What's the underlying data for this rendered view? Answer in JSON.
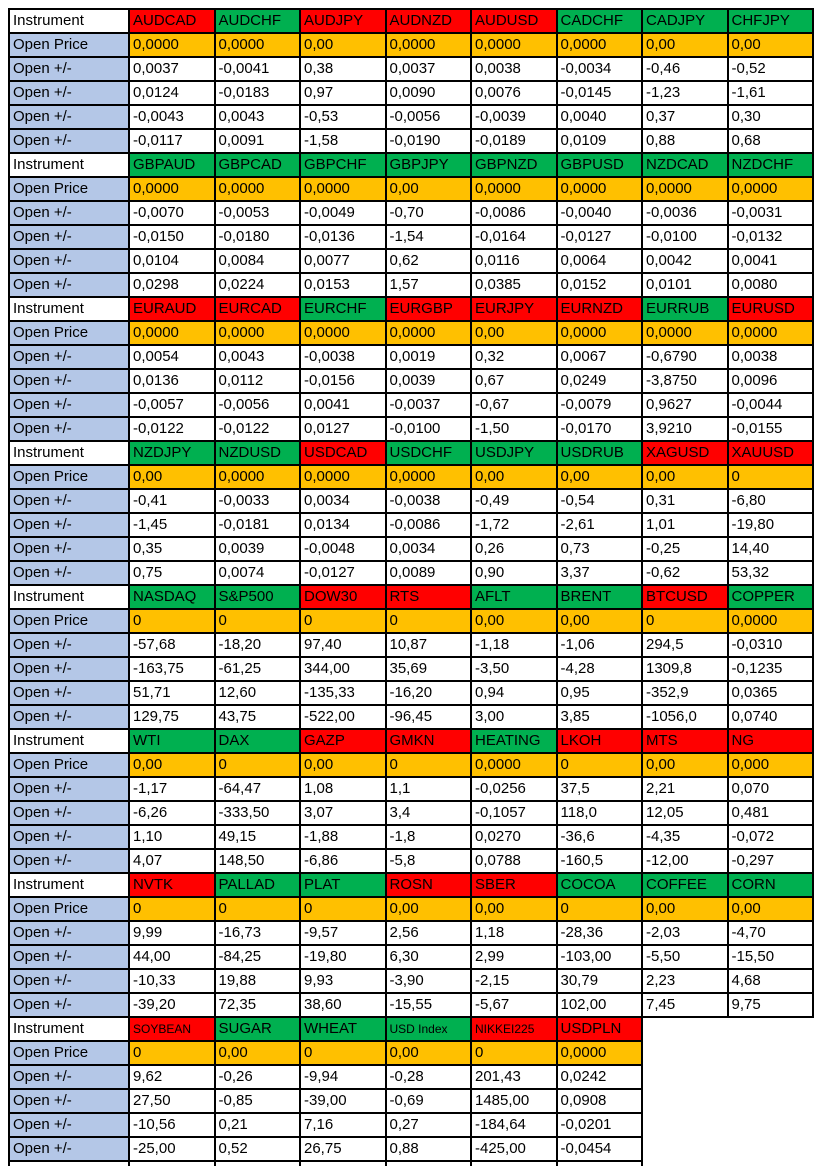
{
  "labels": {
    "instrument": "Instrument",
    "open_price": "Open Price",
    "open_change": "Open +/-"
  },
  "colors": {
    "header_red": "#FF0000",
    "header_green": "#00B050",
    "price_orange": "#FFC000",
    "label_blue": "#B4C7E7",
    "grid_border": "#000000"
  },
  "blocks": [
    {
      "instruments": [
        {
          "name": "AUDCAD",
          "color": "red"
        },
        {
          "name": "AUDCHF",
          "color": "green"
        },
        {
          "name": "AUDJPY",
          "color": "red"
        },
        {
          "name": "AUDNZD",
          "color": "red"
        },
        {
          "name": "AUDUSD",
          "color": "red"
        },
        {
          "name": "CADCHF",
          "color": "green"
        },
        {
          "name": "CADJPY",
          "color": "green"
        },
        {
          "name": "CHFJPY",
          "color": "green"
        }
      ],
      "open_price": [
        "0,0000",
        "0,0000",
        "0,00",
        "0,0000",
        "0,0000",
        "0,0000",
        "0,00",
        "0,00"
      ],
      "rows": [
        [
          "0,0037",
          "-0,0041",
          "0,38",
          "0,0037",
          "0,0038",
          "-0,0034",
          "-0,46",
          "-0,52"
        ],
        [
          "0,0124",
          "-0,0183",
          "0,97",
          "0,0090",
          "0,0076",
          "-0,0145",
          "-1,23",
          "-1,61"
        ],
        [
          "-0,0043",
          "0,0043",
          "-0,53",
          "-0,0056",
          "-0,0039",
          "0,0040",
          "0,37",
          "0,30"
        ],
        [
          "-0,0117",
          "0,0091",
          "-1,58",
          "-0,0190",
          "-0,0189",
          "0,0109",
          "0,88",
          "0,68"
        ]
      ]
    },
    {
      "instruments": [
        {
          "name": "GBPAUD",
          "color": "green"
        },
        {
          "name": "GBPCAD",
          "color": "green"
        },
        {
          "name": "GBPCHF",
          "color": "green"
        },
        {
          "name": "GBPJPY",
          "color": "green"
        },
        {
          "name": "GBPNZD",
          "color": "green"
        },
        {
          "name": "GBPUSD",
          "color": "green"
        },
        {
          "name": "NZDCAD",
          "color": "green"
        },
        {
          "name": "NZDCHF",
          "color": "green"
        }
      ],
      "open_price": [
        "0,0000",
        "0,0000",
        "0,0000",
        "0,00",
        "0,0000",
        "0,0000",
        "0,0000",
        "0,0000"
      ],
      "rows": [
        [
          "-0,0070",
          "-0,0053",
          "-0,0049",
          "-0,70",
          "-0,0086",
          "-0,0040",
          "-0,0036",
          "-0,0031"
        ],
        [
          "-0,0150",
          "-0,0180",
          "-0,0136",
          "-1,54",
          "-0,0164",
          "-0,0127",
          "-0,0100",
          "-0,0132"
        ],
        [
          "0,0104",
          "0,0084",
          "0,0077",
          "0,62",
          "0,0116",
          "0,0064",
          "0,0042",
          "0,0041"
        ],
        [
          "0,0298",
          "0,0224",
          "0,0153",
          "1,57",
          "0,0385",
          "0,0152",
          "0,0101",
          "0,0080"
        ]
      ]
    },
    {
      "instruments": [
        {
          "name": "EURAUD",
          "color": "red"
        },
        {
          "name": "EURCAD",
          "color": "red"
        },
        {
          "name": "EURCHF",
          "color": "green"
        },
        {
          "name": "EURGBP",
          "color": "red"
        },
        {
          "name": "EURJPY",
          "color": "red"
        },
        {
          "name": "EURNZD",
          "color": "red"
        },
        {
          "name": "EURRUB",
          "color": "green"
        },
        {
          "name": "EURUSD",
          "color": "red"
        }
      ],
      "open_price": [
        "0,0000",
        "0,0000",
        "0,0000",
        "0,0000",
        "0,00",
        "0,0000",
        "0,0000",
        "0,0000"
      ],
      "rows": [
        [
          "0,0054",
          "0,0043",
          "-0,0038",
          "0,0019",
          "0,32",
          "0,0067",
          "-0,6790",
          "0,0038"
        ],
        [
          "0,0136",
          "0,0112",
          "-0,0156",
          "0,0039",
          "0,67",
          "0,0249",
          "-3,8750",
          "0,0096"
        ],
        [
          "-0,0057",
          "-0,0056",
          "0,0041",
          "-0,0037",
          "-0,67",
          "-0,0079",
          "0,9627",
          "-0,0044"
        ],
        [
          "-0,0122",
          "-0,0122",
          "0,0127",
          "-0,0100",
          "-1,50",
          "-0,0170",
          "3,9210",
          "-0,0155"
        ]
      ]
    },
    {
      "instruments": [
        {
          "name": "NZDJPY",
          "color": "green"
        },
        {
          "name": "NZDUSD",
          "color": "green"
        },
        {
          "name": "USDCAD",
          "color": "red"
        },
        {
          "name": "USDCHF",
          "color": "green"
        },
        {
          "name": "USDJPY",
          "color": "green"
        },
        {
          "name": "USDRUB",
          "color": "green"
        },
        {
          "name": "XAGUSD",
          "color": "red"
        },
        {
          "name": "XAUUSD",
          "color": "red"
        }
      ],
      "open_price": [
        "0,00",
        "0,0000",
        "0,0000",
        "0,0000",
        "0,00",
        "0,00",
        "0,00",
        "0"
      ],
      "rows": [
        [
          "-0,41",
          "-0,0033",
          "0,0034",
          "-0,0038",
          "-0,49",
          "-0,54",
          "0,31",
          "-6,80"
        ],
        [
          "-1,45",
          "-0,0181",
          "0,0134",
          "-0,0086",
          "-1,72",
          "-2,61",
          "1,01",
          "-19,80"
        ],
        [
          "0,35",
          "0,0039",
          "-0,0048",
          "0,0034",
          "0,26",
          "0,73",
          "-0,25",
          "14,40"
        ],
        [
          "0,75",
          "0,0074",
          "-0,0127",
          "0,0089",
          "0,90",
          "3,37",
          "-0,62",
          "53,32"
        ]
      ]
    },
    {
      "instruments": [
        {
          "name": "NASDAQ",
          "color": "green"
        },
        {
          "name": "S&P500",
          "color": "green"
        },
        {
          "name": "DOW30",
          "color": "red"
        },
        {
          "name": "RTS",
          "color": "red"
        },
        {
          "name": "AFLT",
          "color": "green"
        },
        {
          "name": "BRENT",
          "color": "green"
        },
        {
          "name": "BTCUSD",
          "color": "red"
        },
        {
          "name": "COPPER",
          "color": "green"
        }
      ],
      "open_price": [
        "0",
        "0",
        "0",
        "0",
        "0,00",
        "0,00",
        "0",
        "0,0000"
      ],
      "rows": [
        [
          "-57,68",
          "-18,20",
          "97,40",
          "10,87",
          "-1,18",
          "-1,06",
          "294,5",
          "-0,0310"
        ],
        [
          "-163,75",
          "-61,25",
          "344,00",
          "35,69",
          "-3,50",
          "-4,28",
          "1309,8",
          "-0,1235"
        ],
        [
          "51,71",
          "12,60",
          "-135,33",
          "-16,20",
          "0,94",
          "0,95",
          "-352,9",
          "0,0365"
        ],
        [
          "129,75",
          "43,75",
          "-522,00",
          "-96,45",
          "3,00",
          "3,85",
          "-1056,0",
          "0,0740"
        ]
      ]
    },
    {
      "instruments": [
        {
          "name": "WTI",
          "color": "green"
        },
        {
          "name": "DAX",
          "color": "green"
        },
        {
          "name": "GAZP",
          "color": "red"
        },
        {
          "name": "GMKN",
          "color": "red"
        },
        {
          "name": "HEATING",
          "color": "green"
        },
        {
          "name": "LKOH",
          "color": "red"
        },
        {
          "name": "MTS",
          "color": "red"
        },
        {
          "name": "NG",
          "color": "red"
        }
      ],
      "open_price": [
        "0,00",
        "0",
        "0,00",
        "0",
        "0,0000",
        "0",
        "0,00",
        "0,000"
      ],
      "rows": [
        [
          "-1,17",
          "-64,47",
          "1,08",
          "1,1",
          "-0,0256",
          "37,5",
          "2,21",
          "0,070"
        ],
        [
          "-6,26",
          "-333,50",
          "3,07",
          "3,4",
          "-0,1057",
          "118,0",
          "12,05",
          "0,481"
        ],
        [
          "1,10",
          "49,15",
          "-1,88",
          "-1,8",
          "0,0270",
          "-36,6",
          "-4,35",
          "-0,072"
        ],
        [
          "4,07",
          "148,50",
          "-6,86",
          "-5,8",
          "0,0788",
          "-160,5",
          "-12,00",
          "-0,297"
        ]
      ]
    },
    {
      "instruments": [
        {
          "name": "NVTK",
          "color": "red"
        },
        {
          "name": "PALLAD",
          "color": "green"
        },
        {
          "name": "PLAT",
          "color": "green"
        },
        {
          "name": "ROSN",
          "color": "red"
        },
        {
          "name": "SBER",
          "color": "red"
        },
        {
          "name": "COCOA",
          "color": "green"
        },
        {
          "name": "COFFEE",
          "color": "green"
        },
        {
          "name": "CORN",
          "color": "green"
        }
      ],
      "open_price": [
        "0",
        "0",
        "0",
        "0,00",
        "0,00",
        "0",
        "0,00",
        "0,00"
      ],
      "rows": [
        [
          "9,99",
          "-16,73",
          "-9,57",
          "2,56",
          "1,18",
          "-28,36",
          "-2,03",
          "-4,70"
        ],
        [
          "44,00",
          "-84,25",
          "-19,80",
          "6,30",
          "2,99",
          "-103,00",
          "-5,50",
          "-15,50"
        ],
        [
          "-10,33",
          "19,88",
          "9,93",
          "-3,90",
          "-2,15",
          "30,79",
          "2,23",
          "4,68"
        ],
        [
          "-39,20",
          "72,35",
          "38,60",
          "-15,55",
          "-5,67",
          "102,00",
          "7,45",
          "9,75"
        ]
      ]
    },
    {
      "instruments": [
        {
          "name": "SOYBEAN",
          "color": "red",
          "small": true
        },
        {
          "name": "SUGAR",
          "color": "green"
        },
        {
          "name": "WHEAT",
          "color": "green"
        },
        {
          "name": "USD Index",
          "color": "green",
          "small": true
        },
        {
          "name": "NIKKEI225",
          "color": "red",
          "small": true
        },
        {
          "name": "USDPLN",
          "color": "red"
        }
      ],
      "open_price": [
        "0",
        "0,00",
        "0",
        "0,00",
        "0",
        "0,0000"
      ],
      "rows": [
        [
          "9,62",
          "-0,26",
          "-9,94",
          "-0,28",
          "201,43",
          "0,0242"
        ],
        [
          "27,50",
          "-0,85",
          "-39,00",
          "-0,69",
          "1485,00",
          "0,0908"
        ],
        [
          "-10,56",
          "0,21",
          "7,16",
          "0,27",
          "-184,64",
          "-0,0201"
        ],
        [
          "-25,00",
          "0,52",
          "26,75",
          "0,88",
          "-425,00",
          "-0,0454"
        ]
      ]
    }
  ]
}
